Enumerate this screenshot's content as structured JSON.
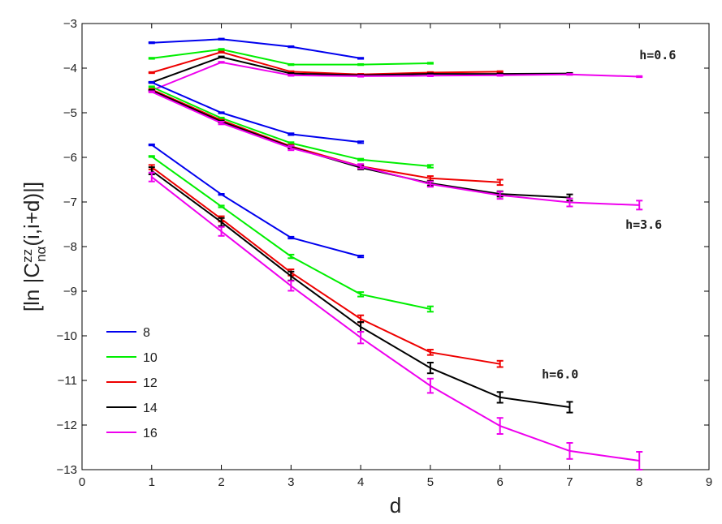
{
  "chart_data": {
    "type": "line",
    "xlabel": "d",
    "ylabel": "[ln |C^zz_nα(i,i+d)|]",
    "xlim": [
      0,
      9
    ],
    "ylim": [
      -13,
      -3
    ],
    "xticks": [
      0,
      1,
      2,
      3,
      4,
      5,
      6,
      7,
      8,
      9
    ],
    "yticks": [
      -3,
      -4,
      -5,
      -6,
      -7,
      -8,
      -9,
      -10,
      -11,
      -12,
      -13
    ],
    "grid": false,
    "legend_position": "bottom-left",
    "annotations": [
      {
        "text": "h=0.6",
        "x": 8.0,
        "y": -3.8
      },
      {
        "text": "h=3.6",
        "x": 7.8,
        "y": -7.6
      },
      {
        "text": "h=6.0",
        "x": 6.6,
        "y": -10.95
      }
    ],
    "groups": [
      {
        "h": "0.6",
        "series": [
          {
            "name": "8",
            "color": "#0000ee",
            "x": [
              1,
              2,
              3,
              4
            ],
            "y": [
              -3.43,
              -3.35,
              -3.52,
              -3.78
            ],
            "err": [
              0,
              0,
              0,
              0
            ]
          },
          {
            "name": "10",
            "color": "#00ee00",
            "x": [
              1,
              2,
              3,
              4,
              5
            ],
            "y": [
              -3.78,
              -3.58,
              -3.92,
              -3.92,
              -3.89
            ],
            "err": [
              0,
              0,
              0,
              0,
              0
            ]
          },
          {
            "name": "12",
            "color": "#ee0000",
            "x": [
              1,
              2,
              3,
              4,
              5,
              6
            ],
            "y": [
              -4.1,
              -3.64,
              -4.08,
              -4.14,
              -4.1,
              -4.08
            ],
            "err": [
              0,
              0,
              0,
              0,
              0,
              0
            ]
          },
          {
            "name": "14",
            "color": "#000000",
            "x": [
              1,
              2,
              3,
              4,
              5,
              6,
              7
            ],
            "y": [
              -4.32,
              -3.75,
              -4.12,
              -4.16,
              -4.13,
              -4.13,
              -4.12
            ],
            "err": [
              0,
              0,
              0,
              0,
              0,
              0,
              0
            ]
          },
          {
            "name": "16",
            "color": "#ee00ee",
            "x": [
              1,
              2,
              3,
              4,
              5,
              6,
              7,
              8
            ],
            "y": [
              -4.5,
              -3.87,
              -4.16,
              -4.18,
              -4.17,
              -4.16,
              -4.14,
              -4.19
            ],
            "err": [
              0,
              0,
              0,
              0,
              0,
              0,
              0,
              0
            ]
          }
        ]
      },
      {
        "h": "3.6",
        "series": [
          {
            "name": "8",
            "color": "#0000ee",
            "x": [
              1,
              2,
              3,
              4
            ],
            "y": [
              -4.32,
              -5.0,
              -5.48,
              -5.66
            ],
            "err": [
              0,
              0,
              0.02,
              0.02
            ]
          },
          {
            "name": "10",
            "color": "#00ee00",
            "x": [
              1,
              2,
              3,
              4,
              5
            ],
            "y": [
              -4.42,
              -5.12,
              -5.68,
              -6.05,
              -6.2
            ],
            "err": [
              0,
              0,
              0.02,
              0.02,
              0.03
            ]
          },
          {
            "name": "12",
            "color": "#ee0000",
            "x": [
              1,
              2,
              3,
              4,
              5,
              6
            ],
            "y": [
              -4.48,
              -5.17,
              -5.75,
              -6.2,
              -6.47,
              -6.56
            ],
            "err": [
              0,
              0,
              0.03,
              0.03,
              0.05,
              0.06
            ]
          },
          {
            "name": "14",
            "color": "#000000",
            "x": [
              1,
              2,
              3,
              4,
              5,
              6,
              7
            ],
            "y": [
              -4.5,
              -5.2,
              -5.77,
              -6.23,
              -6.58,
              -6.82,
              -6.9
            ],
            "err": [
              0,
              0.02,
              0.03,
              0.04,
              0.05,
              0.06,
              0.07
            ]
          },
          {
            "name": "16",
            "color": "#ee00ee",
            "x": [
              1,
              2,
              3,
              4,
              5,
              6,
              7,
              8
            ],
            "y": [
              -4.53,
              -5.23,
              -5.79,
              -6.2,
              -6.6,
              -6.85,
              -7.01,
              -7.07
            ],
            "err": [
              0,
              0.03,
              0.05,
              0.05,
              0.06,
              0.08,
              0.09,
              0.1
            ]
          }
        ]
      },
      {
        "h": "6.0",
        "series": [
          {
            "name": "8",
            "color": "#0000ee",
            "x": [
              1,
              2,
              3,
              4
            ],
            "y": [
              -5.72,
              -6.83,
              -7.8,
              -8.22
            ],
            "err": [
              0,
              0,
              0.02,
              0.02
            ]
          },
          {
            "name": "10",
            "color": "#00ee00",
            "x": [
              1,
              2,
              3,
              4,
              5
            ],
            "y": [
              -5.98,
              -7.1,
              -8.22,
              -9.07,
              -9.4
            ],
            "err": [
              0,
              0.02,
              0.04,
              0.05,
              0.06
            ]
          },
          {
            "name": "12",
            "color": "#ee0000",
            "x": [
              1,
              2,
              3,
              4,
              5,
              6
            ],
            "y": [
              -6.22,
              -7.38,
              -8.58,
              -9.62,
              -10.37,
              -10.63
            ],
            "err": [
              0.05,
              0.06,
              0.07,
              0.08,
              0.06,
              0.07
            ]
          },
          {
            "name": "14",
            "color": "#000000",
            "x": [
              1,
              2,
              3,
              4,
              5,
              6,
              7
            ],
            "y": [
              -6.3,
              -7.45,
              -8.66,
              -9.8,
              -10.72,
              -11.38,
              -11.6
            ],
            "err": [
              0.08,
              0.09,
              0.1,
              0.11,
              0.12,
              0.12,
              0.12
            ]
          },
          {
            "name": "16",
            "color": "#ee00ee",
            "x": [
              1,
              2,
              3,
              4,
              5,
              6,
              7,
              8
            ],
            "y": [
              -6.44,
              -7.66,
              -8.88,
              -10.04,
              -11.12,
              -12.02,
              -12.58,
              -12.8
            ],
            "err": [
              0.1,
              0.1,
              0.11,
              0.13,
              0.16,
              0.18,
              0.18,
              0.2
            ]
          }
        ]
      }
    ],
    "legend": [
      {
        "name": "8",
        "color": "#0000ee"
      },
      {
        "name": "10",
        "color": "#00ee00"
      },
      {
        "name": "12",
        "color": "#ee0000"
      },
      {
        "name": "14",
        "color": "#000000"
      },
      {
        "name": "16",
        "color": "#ee00ee"
      }
    ]
  }
}
